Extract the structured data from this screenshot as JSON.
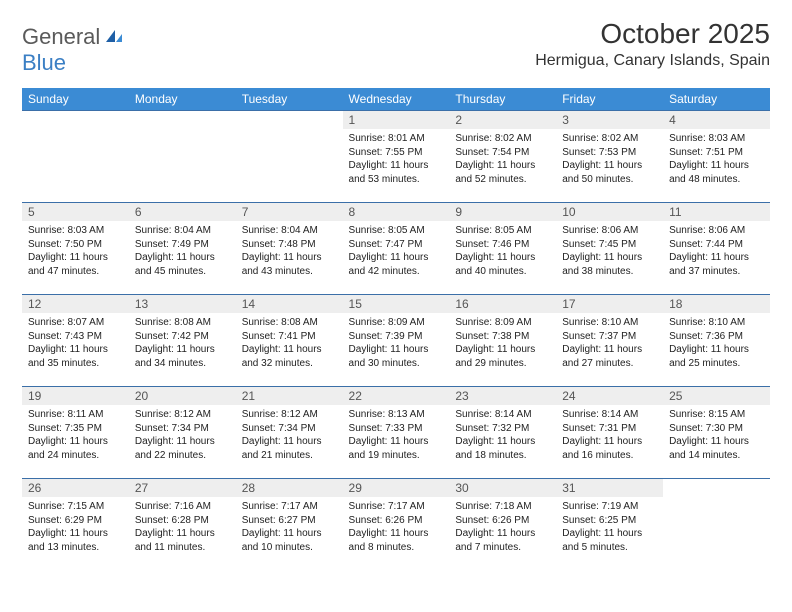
{
  "logo": {
    "text1": "General",
    "text2": "Blue"
  },
  "title": "October 2025",
  "location": "Hermigua, Canary Islands, Spain",
  "colors": {
    "header_bg": "#3b8bd4",
    "header_text": "#ffffff",
    "cell_border": "#3b6fa8",
    "daynum_bg": "#eeeeee",
    "logo_gray": "#5a5a5a",
    "logo_blue": "#3b7fc4"
  },
  "day_names": [
    "Sunday",
    "Monday",
    "Tuesday",
    "Wednesday",
    "Thursday",
    "Friday",
    "Saturday"
  ],
  "weeks": [
    [
      null,
      null,
      null,
      {
        "n": "1",
        "sr": "Sunrise: 8:01 AM",
        "ss": "Sunset: 7:55 PM",
        "dl": "Daylight: 11 hours and 53 minutes."
      },
      {
        "n": "2",
        "sr": "Sunrise: 8:02 AM",
        "ss": "Sunset: 7:54 PM",
        "dl": "Daylight: 11 hours and 52 minutes."
      },
      {
        "n": "3",
        "sr": "Sunrise: 8:02 AM",
        "ss": "Sunset: 7:53 PM",
        "dl": "Daylight: 11 hours and 50 minutes."
      },
      {
        "n": "4",
        "sr": "Sunrise: 8:03 AM",
        "ss": "Sunset: 7:51 PM",
        "dl": "Daylight: 11 hours and 48 minutes."
      }
    ],
    [
      {
        "n": "5",
        "sr": "Sunrise: 8:03 AM",
        "ss": "Sunset: 7:50 PM",
        "dl": "Daylight: 11 hours and 47 minutes."
      },
      {
        "n": "6",
        "sr": "Sunrise: 8:04 AM",
        "ss": "Sunset: 7:49 PM",
        "dl": "Daylight: 11 hours and 45 minutes."
      },
      {
        "n": "7",
        "sr": "Sunrise: 8:04 AM",
        "ss": "Sunset: 7:48 PM",
        "dl": "Daylight: 11 hours and 43 minutes."
      },
      {
        "n": "8",
        "sr": "Sunrise: 8:05 AM",
        "ss": "Sunset: 7:47 PM",
        "dl": "Daylight: 11 hours and 42 minutes."
      },
      {
        "n": "9",
        "sr": "Sunrise: 8:05 AM",
        "ss": "Sunset: 7:46 PM",
        "dl": "Daylight: 11 hours and 40 minutes."
      },
      {
        "n": "10",
        "sr": "Sunrise: 8:06 AM",
        "ss": "Sunset: 7:45 PM",
        "dl": "Daylight: 11 hours and 38 minutes."
      },
      {
        "n": "11",
        "sr": "Sunrise: 8:06 AM",
        "ss": "Sunset: 7:44 PM",
        "dl": "Daylight: 11 hours and 37 minutes."
      }
    ],
    [
      {
        "n": "12",
        "sr": "Sunrise: 8:07 AM",
        "ss": "Sunset: 7:43 PM",
        "dl": "Daylight: 11 hours and 35 minutes."
      },
      {
        "n": "13",
        "sr": "Sunrise: 8:08 AM",
        "ss": "Sunset: 7:42 PM",
        "dl": "Daylight: 11 hours and 34 minutes."
      },
      {
        "n": "14",
        "sr": "Sunrise: 8:08 AM",
        "ss": "Sunset: 7:41 PM",
        "dl": "Daylight: 11 hours and 32 minutes."
      },
      {
        "n": "15",
        "sr": "Sunrise: 8:09 AM",
        "ss": "Sunset: 7:39 PM",
        "dl": "Daylight: 11 hours and 30 minutes."
      },
      {
        "n": "16",
        "sr": "Sunrise: 8:09 AM",
        "ss": "Sunset: 7:38 PM",
        "dl": "Daylight: 11 hours and 29 minutes."
      },
      {
        "n": "17",
        "sr": "Sunrise: 8:10 AM",
        "ss": "Sunset: 7:37 PM",
        "dl": "Daylight: 11 hours and 27 minutes."
      },
      {
        "n": "18",
        "sr": "Sunrise: 8:10 AM",
        "ss": "Sunset: 7:36 PM",
        "dl": "Daylight: 11 hours and 25 minutes."
      }
    ],
    [
      {
        "n": "19",
        "sr": "Sunrise: 8:11 AM",
        "ss": "Sunset: 7:35 PM",
        "dl": "Daylight: 11 hours and 24 minutes."
      },
      {
        "n": "20",
        "sr": "Sunrise: 8:12 AM",
        "ss": "Sunset: 7:34 PM",
        "dl": "Daylight: 11 hours and 22 minutes."
      },
      {
        "n": "21",
        "sr": "Sunrise: 8:12 AM",
        "ss": "Sunset: 7:34 PM",
        "dl": "Daylight: 11 hours and 21 minutes."
      },
      {
        "n": "22",
        "sr": "Sunrise: 8:13 AM",
        "ss": "Sunset: 7:33 PM",
        "dl": "Daylight: 11 hours and 19 minutes."
      },
      {
        "n": "23",
        "sr": "Sunrise: 8:14 AM",
        "ss": "Sunset: 7:32 PM",
        "dl": "Daylight: 11 hours and 18 minutes."
      },
      {
        "n": "24",
        "sr": "Sunrise: 8:14 AM",
        "ss": "Sunset: 7:31 PM",
        "dl": "Daylight: 11 hours and 16 minutes."
      },
      {
        "n": "25",
        "sr": "Sunrise: 8:15 AM",
        "ss": "Sunset: 7:30 PM",
        "dl": "Daylight: 11 hours and 14 minutes."
      }
    ],
    [
      {
        "n": "26",
        "sr": "Sunrise: 7:15 AM",
        "ss": "Sunset: 6:29 PM",
        "dl": "Daylight: 11 hours and 13 minutes."
      },
      {
        "n": "27",
        "sr": "Sunrise: 7:16 AM",
        "ss": "Sunset: 6:28 PM",
        "dl": "Daylight: 11 hours and 11 minutes."
      },
      {
        "n": "28",
        "sr": "Sunrise: 7:17 AM",
        "ss": "Sunset: 6:27 PM",
        "dl": "Daylight: 11 hours and 10 minutes."
      },
      {
        "n": "29",
        "sr": "Sunrise: 7:17 AM",
        "ss": "Sunset: 6:26 PM",
        "dl": "Daylight: 11 hours and 8 minutes."
      },
      {
        "n": "30",
        "sr": "Sunrise: 7:18 AM",
        "ss": "Sunset: 6:26 PM",
        "dl": "Daylight: 11 hours and 7 minutes."
      },
      {
        "n": "31",
        "sr": "Sunrise: 7:19 AM",
        "ss": "Sunset: 6:25 PM",
        "dl": "Daylight: 11 hours and 5 minutes."
      },
      null
    ]
  ]
}
